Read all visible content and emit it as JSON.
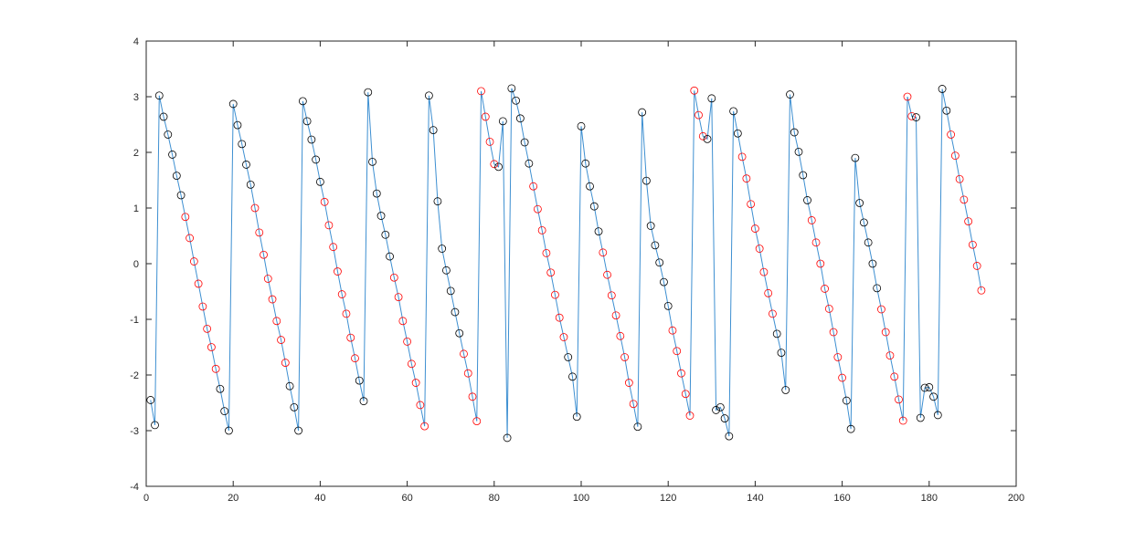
{
  "chart_data": {
    "type": "line",
    "x": [
      1,
      2,
      3,
      4,
      5,
      6,
      7,
      8,
      9,
      10,
      11,
      12,
      13,
      14,
      15,
      16,
      17,
      18,
      19,
      20,
      21,
      22,
      23,
      24,
      25,
      26,
      27,
      28,
      29,
      30,
      31,
      32,
      33,
      34,
      35,
      36,
      37,
      38,
      39,
      40,
      41,
      42,
      43,
      44,
      45,
      46,
      47,
      48,
      49,
      50,
      51,
      52,
      53,
      54,
      55,
      56,
      57,
      58,
      59,
      60,
      61,
      62,
      63,
      64,
      65,
      66,
      67,
      68,
      69,
      70,
      71,
      72,
      73,
      74,
      75,
      76,
      77,
      78,
      79,
      80,
      81,
      82,
      83,
      84,
      85,
      86,
      87,
      88,
      89,
      90,
      91,
      92,
      93,
      94,
      95,
      96,
      97,
      98,
      99,
      100,
      101,
      102,
      103,
      104,
      105,
      106,
      107,
      108,
      109,
      110,
      111,
      112,
      113,
      114,
      115,
      116,
      117,
      118,
      119,
      120,
      121,
      122,
      123,
      124,
      125,
      126,
      127,
      128,
      129,
      130,
      131,
      132,
      133,
      134,
      135,
      136,
      137,
      138,
      139,
      140,
      141,
      142,
      143,
      144,
      145,
      146,
      147,
      148,
      149,
      150,
      151,
      152,
      153,
      154,
      155,
      156,
      157,
      158,
      159,
      160,
      161,
      162,
      163,
      164,
      165,
      166,
      167,
      168,
      169,
      170,
      171,
      172,
      173,
      174,
      175,
      176,
      177,
      178,
      179,
      180,
      181,
      182,
      183,
      184,
      185,
      186,
      187,
      188,
      189,
      190,
      191,
      192
    ],
    "values": [
      -2.45,
      -2.9,
      3.02,
      2.64,
      2.32,
      1.96,
      1.58,
      1.23,
      0.84,
      0.46,
      0.04,
      -0.36,
      -0.77,
      -1.17,
      -1.5,
      -1.89,
      -2.25,
      -2.65,
      -3.0,
      2.87,
      2.49,
      2.15,
      1.78,
      1.42,
      1.0,
      0.56,
      0.16,
      -0.27,
      -0.64,
      -1.03,
      -1.37,
      -1.78,
      -2.2,
      -2.58,
      -3.0,
      2.92,
      2.56,
      2.23,
      1.87,
      1.47,
      1.11,
      0.69,
      0.3,
      -0.14,
      -0.55,
      -0.9,
      -1.33,
      -1.7,
      -2.1,
      -2.47,
      3.08,
      1.83,
      1.26,
      0.86,
      0.52,
      0.13,
      -0.25,
      -0.6,
      -1.03,
      -1.4,
      -1.8,
      -2.14,
      -2.54,
      -2.92,
      3.02,
      2.4,
      1.12,
      0.27,
      -0.12,
      -0.49,
      -0.87,
      -1.25,
      -1.62,
      -1.97,
      -2.39,
      -2.83,
      3.1,
      2.64,
      2.19,
      1.79,
      1.74,
      2.56,
      -3.13,
      3.15,
      2.93,
      2.61,
      2.18,
      1.8,
      1.39,
      0.98,
      0.6,
      0.19,
      -0.16,
      -0.56,
      -0.97,
      -1.32,
      -1.68,
      -2.03,
      -2.75,
      2.47,
      1.8,
      1.39,
      1.03,
      0.58,
      0.2,
      -0.2,
      -0.57,
      -0.93,
      -1.3,
      -1.68,
      -2.14,
      -2.52,
      -2.93,
      2.72,
      1.49,
      0.68,
      0.33,
      0.02,
      -0.33,
      -0.76,
      -1.2,
      -1.57,
      -1.97,
      -2.34,
      -2.73,
      3.11,
      2.67,
      2.29,
      2.24,
      2.97,
      -2.63,
      -2.58,
      -2.78,
      -3.1,
      2.74,
      2.34,
      1.92,
      1.53,
      1.07,
      0.63,
      0.27,
      -0.15,
      -0.53,
      -0.9,
      -1.26,
      -1.6,
      -2.27,
      3.04,
      2.36,
      2.01,
      1.59,
      1.14,
      0.78,
      0.38,
      0.0,
      -0.45,
      -0.81,
      -1.23,
      -1.68,
      -2.05,
      -2.46,
      -2.97,
      1.9,
      1.09,
      0.74,
      0.38,
      0.0,
      -0.44,
      -0.82,
      -1.23,
      -1.65,
      -2.03,
      -2.44,
      -2.82,
      3.0,
      2.65,
      2.63,
      -2.77,
      -2.23,
      -2.22,
      -2.39,
      -2.72,
      3.14,
      2.75,
      2.32,
      1.94,
      1.52,
      1.15,
      0.76,
      0.34,
      -0.04,
      -0.48
    ],
    "color": "#3d8fd1",
    "marker_colors": [
      "#000000",
      "#000000",
      "#000000",
      "#000000",
      "#000000",
      "#000000",
      "#000000",
      "#000000",
      "#ff0000",
      "#ff0000",
      "#ff0000",
      "#ff0000",
      "#ff0000",
      "#ff0000",
      "#ff0000",
      "#ff0000",
      "#000000",
      "#000000",
      "#000000",
      "#000000",
      "#000000",
      "#000000",
      "#000000",
      "#000000",
      "#ff0000",
      "#ff0000",
      "#ff0000",
      "#ff0000",
      "#ff0000",
      "#ff0000",
      "#ff0000",
      "#ff0000",
      "#000000",
      "#000000",
      "#000000",
      "#000000",
      "#000000",
      "#000000",
      "#000000",
      "#000000",
      "#ff0000",
      "#ff0000",
      "#ff0000",
      "#ff0000",
      "#ff0000",
      "#ff0000",
      "#ff0000",
      "#ff0000",
      "#000000",
      "#000000",
      "#000000",
      "#000000",
      "#000000",
      "#000000",
      "#000000",
      "#000000",
      "#ff0000",
      "#ff0000",
      "#ff0000",
      "#ff0000",
      "#ff0000",
      "#ff0000",
      "#ff0000",
      "#ff0000",
      "#000000",
      "#000000",
      "#000000",
      "#000000",
      "#000000",
      "#000000",
      "#000000",
      "#000000",
      "#ff0000",
      "#ff0000",
      "#ff0000",
      "#ff0000",
      "#ff0000",
      "#ff0000",
      "#ff0000",
      "#ff0000",
      "#000000",
      "#000000",
      "#000000",
      "#000000",
      "#000000",
      "#000000",
      "#000000",
      "#000000",
      "#ff0000",
      "#ff0000",
      "#ff0000",
      "#ff0000",
      "#ff0000",
      "#ff0000",
      "#ff0000",
      "#ff0000",
      "#000000",
      "#000000",
      "#000000",
      "#000000",
      "#000000",
      "#000000",
      "#000000",
      "#000000",
      "#ff0000",
      "#ff0000",
      "#ff0000",
      "#ff0000",
      "#ff0000",
      "#ff0000",
      "#ff0000",
      "#ff0000",
      "#000000",
      "#000000",
      "#000000",
      "#000000",
      "#000000",
      "#000000",
      "#000000",
      "#000000",
      "#ff0000",
      "#ff0000",
      "#ff0000",
      "#ff0000",
      "#ff0000",
      "#ff0000",
      "#ff0000",
      "#ff0000",
      "#000000",
      "#000000",
      "#000000",
      "#000000",
      "#000000",
      "#000000",
      "#000000",
      "#000000",
      "#ff0000",
      "#ff0000",
      "#ff0000",
      "#ff0000",
      "#ff0000",
      "#ff0000",
      "#ff0000",
      "#ff0000",
      "#000000",
      "#000000",
      "#000000",
      "#000000",
      "#000000",
      "#000000",
      "#000000",
      "#000000",
      "#ff0000",
      "#ff0000",
      "#ff0000",
      "#ff0000",
      "#ff0000",
      "#ff0000",
      "#ff0000",
      "#ff0000",
      "#000000",
      "#000000",
      "#000000",
      "#000000",
      "#000000",
      "#000000",
      "#000000",
      "#000000",
      "#ff0000",
      "#ff0000",
      "#ff0000",
      "#ff0000",
      "#ff0000",
      "#ff0000",
      "#ff0000",
      "#ff0000",
      "#000000",
      "#000000",
      "#000000",
      "#000000",
      "#000000",
      "#000000",
      "#000000",
      "#000000",
      "#ff0000",
      "#ff0000",
      "#ff0000",
      "#ff0000",
      "#ff0000",
      "#ff0000",
      "#ff0000",
      "#ff0000"
    ],
    "xlim": [
      0,
      200
    ],
    "xticks": [
      0,
      20,
      40,
      60,
      80,
      100,
      120,
      140,
      160,
      180,
      200
    ],
    "ylim": [
      -4,
      4
    ],
    "yticks": [
      -4,
      -3,
      -2,
      -1,
      0,
      1,
      2,
      3,
      4
    ],
    "grid": false
  }
}
